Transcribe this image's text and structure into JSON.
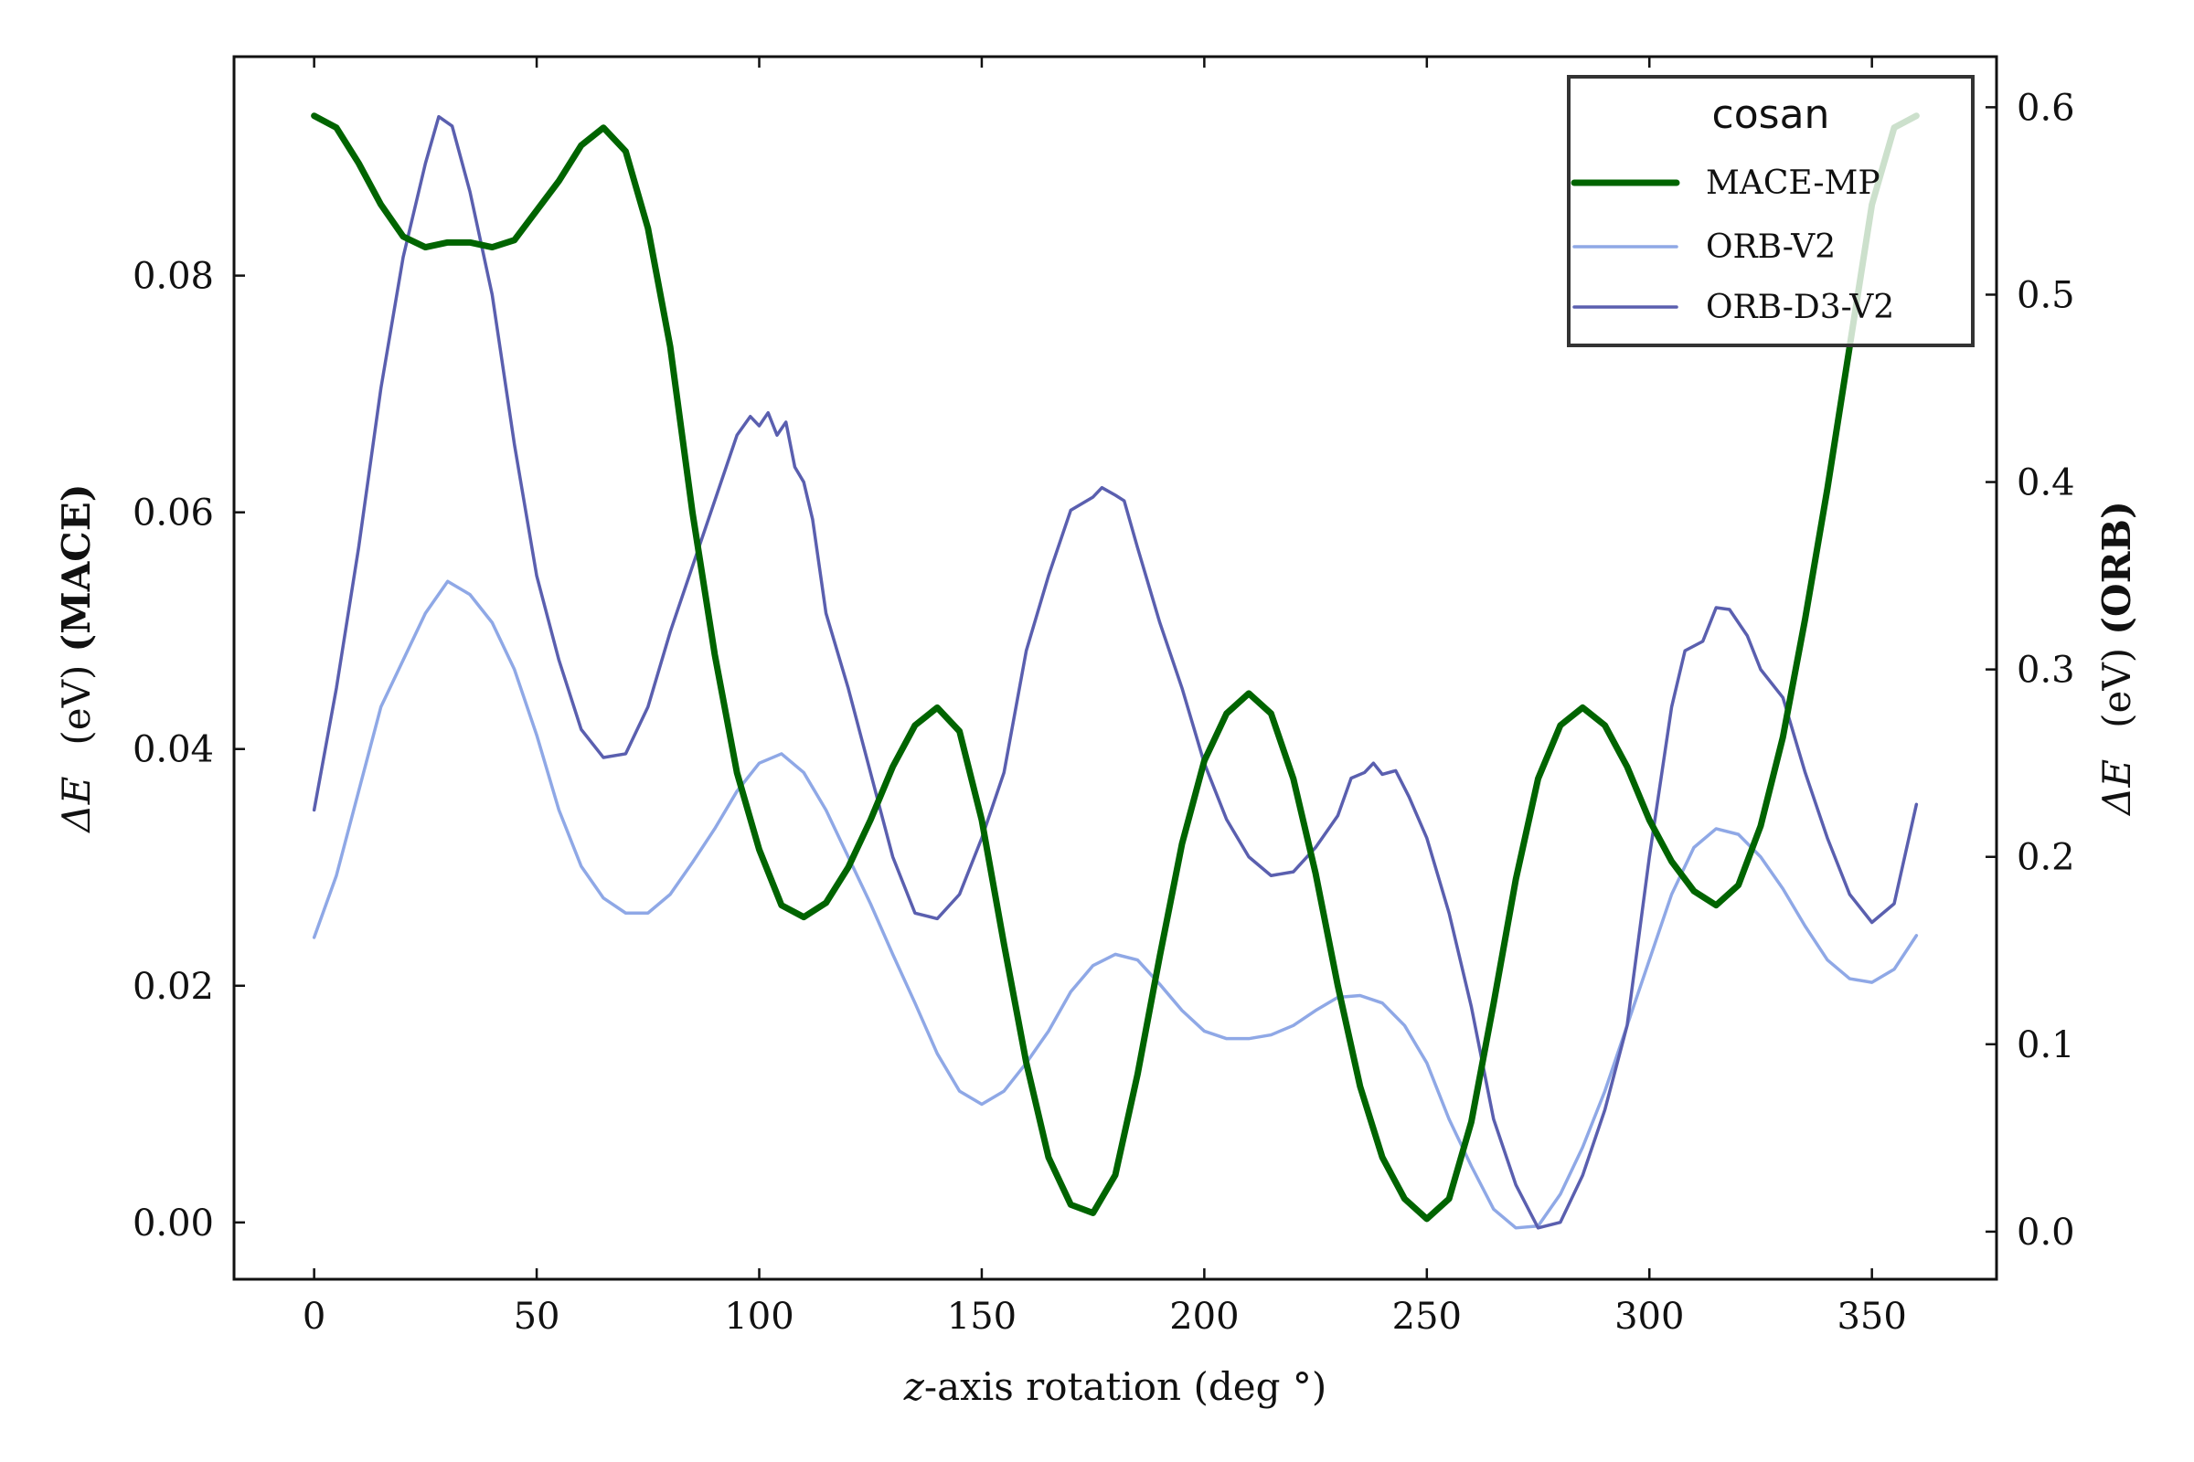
{
  "chart_data": {
    "type": "line",
    "x_ticks": [
      0,
      50,
      100,
      150,
      200,
      250,
      300,
      350
    ],
    "x_tick_labels": [
      "0",
      "50",
      "100",
      "150",
      "200",
      "250",
      "300",
      "350"
    ],
    "xlim": [
      -18,
      378
    ],
    "xlabel": {
      "italic": "z",
      "rest": "-axis rotation (deg °)"
    },
    "y_left": {
      "label": {
        "delta": "ΔE",
        "unit": "(eV)",
        "tag": "(MACE)"
      },
      "lim": [
        -0.0048,
        0.0985
      ],
      "ticks": [
        0.0,
        0.02,
        0.04,
        0.06,
        0.08
      ],
      "tick_labels": [
        "0.00",
        "0.02",
        "0.04",
        "0.06",
        "0.08"
      ]
    },
    "y_right": {
      "label": {
        "delta": "ΔE",
        "unit": "(eV)",
        "tag": "(ORB)"
      },
      "lim": [
        -0.0254,
        0.627
      ],
      "ticks": [
        0.0,
        0.1,
        0.2,
        0.3,
        0.4,
        0.5,
        0.6
      ],
      "tick_labels": [
        "0.0",
        "0.1",
        "0.2",
        "0.3",
        "0.4",
        "0.5",
        "0.6"
      ]
    },
    "legend": {
      "title": "cosan",
      "position": "upper-right"
    },
    "series": [
      {
        "name": "MACE-MP",
        "axis": "left",
        "color": "#006400",
        "width": 7,
        "points": [
          [
            0,
            0.0935
          ],
          [
            5,
            0.0925
          ],
          [
            10,
            0.0895
          ],
          [
            15,
            0.086
          ],
          [
            20,
            0.0833
          ],
          [
            25,
            0.0824
          ],
          [
            30,
            0.0828
          ],
          [
            35,
            0.0828
          ],
          [
            40,
            0.0824
          ],
          [
            45,
            0.083
          ],
          [
            50,
            0.0855
          ],
          [
            55,
            0.088
          ],
          [
            60,
            0.091
          ],
          [
            65,
            0.0925
          ],
          [
            70,
            0.0905
          ],
          [
            75,
            0.084
          ],
          [
            80,
            0.074
          ],
          [
            85,
            0.06
          ],
          [
            90,
            0.048
          ],
          [
            95,
            0.038
          ],
          [
            100,
            0.0315
          ],
          [
            105,
            0.0268
          ],
          [
            110,
            0.0258
          ],
          [
            115,
            0.027
          ],
          [
            120,
            0.03
          ],
          [
            125,
            0.034
          ],
          [
            130,
            0.0385
          ],
          [
            135,
            0.042
          ],
          [
            140,
            0.0435
          ],
          [
            145,
            0.0415
          ],
          [
            150,
            0.034
          ],
          [
            155,
            0.0235
          ],
          [
            160,
            0.0135
          ],
          [
            165,
            0.0055
          ],
          [
            170,
            0.0015
          ],
          [
            175,
            0.0008
          ],
          [
            180,
            0.004
          ],
          [
            185,
            0.0125
          ],
          [
            190,
            0.0225
          ],
          [
            195,
            0.032
          ],
          [
            200,
            0.039
          ],
          [
            205,
            0.043
          ],
          [
            210,
            0.0447
          ],
          [
            215,
            0.043
          ],
          [
            220,
            0.0375
          ],
          [
            225,
            0.0295
          ],
          [
            230,
            0.02
          ],
          [
            235,
            0.0115
          ],
          [
            240,
            0.0055
          ],
          [
            245,
            0.002
          ],
          [
            250,
            0.0003
          ],
          [
            255,
            0.002
          ],
          [
            260,
            0.0085
          ],
          [
            265,
            0.0185
          ],
          [
            270,
            0.029
          ],
          [
            275,
            0.0375
          ],
          [
            280,
            0.042
          ],
          [
            285,
            0.0435
          ],
          [
            290,
            0.042
          ],
          [
            295,
            0.0385
          ],
          [
            300,
            0.034
          ],
          [
            305,
            0.0305
          ],
          [
            310,
            0.028
          ],
          [
            315,
            0.0268
          ],
          [
            320,
            0.0285
          ],
          [
            325,
            0.0335
          ],
          [
            330,
            0.041
          ],
          [
            335,
            0.051
          ],
          [
            340,
            0.062
          ],
          [
            345,
            0.074
          ],
          [
            350,
            0.086
          ],
          [
            355,
            0.0925
          ],
          [
            360,
            0.0935
          ]
        ]
      },
      {
        "name": "ORB-V2",
        "axis": "right",
        "color": "#8fa8e6",
        "width": 3.5,
        "points": [
          [
            0,
            0.157
          ],
          [
            5,
            0.19
          ],
          [
            10,
            0.235
          ],
          [
            15,
            0.28
          ],
          [
            20,
            0.305
          ],
          [
            25,
            0.33
          ],
          [
            30,
            0.347
          ],
          [
            35,
            0.34
          ],
          [
            40,
            0.325
          ],
          [
            45,
            0.3
          ],
          [
            50,
            0.265
          ],
          [
            55,
            0.225
          ],
          [
            60,
            0.195
          ],
          [
            65,
            0.178
          ],
          [
            70,
            0.17
          ],
          [
            75,
            0.17
          ],
          [
            80,
            0.18
          ],
          [
            85,
            0.197
          ],
          [
            90,
            0.215
          ],
          [
            95,
            0.235
          ],
          [
            100,
            0.25
          ],
          [
            105,
            0.255
          ],
          [
            110,
            0.245
          ],
          [
            115,
            0.225
          ],
          [
            120,
            0.2
          ],
          [
            125,
            0.175
          ],
          [
            130,
            0.148
          ],
          [
            135,
            0.122
          ],
          [
            140,
            0.095
          ],
          [
            145,
            0.075
          ],
          [
            150,
            0.068
          ],
          [
            155,
            0.075
          ],
          [
            160,
            0.09
          ],
          [
            165,
            0.107
          ],
          [
            170,
            0.128
          ],
          [
            175,
            0.142
          ],
          [
            180,
            0.148
          ],
          [
            185,
            0.145
          ],
          [
            190,
            0.132
          ],
          [
            195,
            0.118
          ],
          [
            200,
            0.107
          ],
          [
            205,
            0.103
          ],
          [
            210,
            0.103
          ],
          [
            215,
            0.105
          ],
          [
            220,
            0.11
          ],
          [
            225,
            0.118
          ],
          [
            230,
            0.125
          ],
          [
            235,
            0.126
          ],
          [
            240,
            0.122
          ],
          [
            245,
            0.11
          ],
          [
            250,
            0.09
          ],
          [
            255,
            0.06
          ],
          [
            260,
            0.035
          ],
          [
            265,
            0.012
          ],
          [
            270,
            0.002
          ],
          [
            275,
            0.003
          ],
          [
            280,
            0.02
          ],
          [
            285,
            0.045
          ],
          [
            290,
            0.075
          ],
          [
            295,
            0.11
          ],
          [
            300,
            0.145
          ],
          [
            305,
            0.18
          ],
          [
            310,
            0.205
          ],
          [
            315,
            0.215
          ],
          [
            320,
            0.212
          ],
          [
            325,
            0.2
          ],
          [
            330,
            0.183
          ],
          [
            335,
            0.163
          ],
          [
            340,
            0.145
          ],
          [
            345,
            0.135
          ],
          [
            350,
            0.133
          ],
          [
            355,
            0.14
          ],
          [
            360,
            0.158
          ]
        ]
      },
      {
        "name": "ORB-D3-V2",
        "axis": "right",
        "color": "#5a5faf",
        "width": 3.5,
        "points": [
          [
            0,
            0.225
          ],
          [
            5,
            0.29
          ],
          [
            10,
            0.365
          ],
          [
            15,
            0.45
          ],
          [
            20,
            0.52
          ],
          [
            25,
            0.57
          ],
          [
            28,
            0.595
          ],
          [
            31,
            0.59
          ],
          [
            35,
            0.555
          ],
          [
            40,
            0.5
          ],
          [
            45,
            0.42
          ],
          [
            50,
            0.35
          ],
          [
            55,
            0.305
          ],
          [
            60,
            0.268
          ],
          [
            65,
            0.253
          ],
          [
            70,
            0.255
          ],
          [
            75,
            0.28
          ],
          [
            80,
            0.32
          ],
          [
            85,
            0.355
          ],
          [
            90,
            0.39
          ],
          [
            95,
            0.425
          ],
          [
            98,
            0.435
          ],
          [
            100,
            0.43
          ],
          [
            102,
            0.437
          ],
          [
            104,
            0.425
          ],
          [
            106,
            0.432
          ],
          [
            108,
            0.408
          ],
          [
            110,
            0.4
          ],
          [
            112,
            0.38
          ],
          [
            115,
            0.33
          ],
          [
            120,
            0.29
          ],
          [
            125,
            0.245
          ],
          [
            130,
            0.2
          ],
          [
            135,
            0.17
          ],
          [
            140,
            0.167
          ],
          [
            145,
            0.18
          ],
          [
            150,
            0.21
          ],
          [
            155,
            0.245
          ],
          [
            160,
            0.31
          ],
          [
            165,
            0.35
          ],
          [
            170,
            0.385
          ],
          [
            175,
            0.392
          ],
          [
            177,
            0.397
          ],
          [
            180,
            0.393
          ],
          [
            182,
            0.39
          ],
          [
            185,
            0.365
          ],
          [
            190,
            0.325
          ],
          [
            195,
            0.29
          ],
          [
            200,
            0.25
          ],
          [
            205,
            0.22
          ],
          [
            210,
            0.2
          ],
          [
            215,
            0.19
          ],
          [
            220,
            0.192
          ],
          [
            225,
            0.205
          ],
          [
            230,
            0.222
          ],
          [
            233,
            0.242
          ],
          [
            236,
            0.245
          ],
          [
            238,
            0.25
          ],
          [
            240,
            0.244
          ],
          [
            243,
            0.246
          ],
          [
            246,
            0.232
          ],
          [
            250,
            0.21
          ],
          [
            255,
            0.17
          ],
          [
            260,
            0.12
          ],
          [
            265,
            0.06
          ],
          [
            270,
            0.025
          ],
          [
            275,
            0.002
          ],
          [
            280,
            0.005
          ],
          [
            285,
            0.03
          ],
          [
            290,
            0.065
          ],
          [
            295,
            0.11
          ],
          [
            300,
            0.2
          ],
          [
            305,
            0.28
          ],
          [
            308,
            0.31
          ],
          [
            312,
            0.315
          ],
          [
            315,
            0.333
          ],
          [
            318,
            0.332
          ],
          [
            322,
            0.318
          ],
          [
            325,
            0.3
          ],
          [
            330,
            0.285
          ],
          [
            335,
            0.245
          ],
          [
            340,
            0.21
          ],
          [
            345,
            0.18
          ],
          [
            350,
            0.165
          ],
          [
            355,
            0.175
          ],
          [
            360,
            0.228
          ]
        ]
      }
    ]
  }
}
